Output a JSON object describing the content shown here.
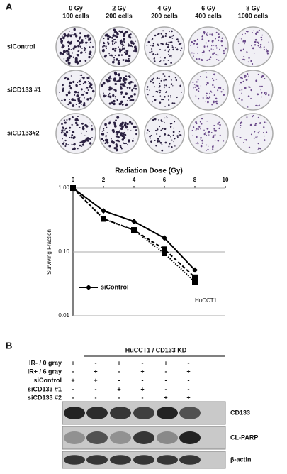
{
  "panel_a": {
    "label": "A",
    "columns": [
      [
        "0 Gy",
        "100 cells"
      ],
      [
        "2 Gy",
        "200 cells"
      ],
      [
        "4 Gy",
        "200 cells"
      ],
      [
        "6 Gy",
        "400 cells"
      ],
      [
        "8 Gy",
        "1000 cells"
      ]
    ],
    "rows": [
      "siControl",
      "siCD133 #1",
      "siCD133#2"
    ]
  },
  "chart_data": {
    "type": "line",
    "title": "Radiation Dose (Gy)",
    "y_label": "Surviving Fraction",
    "annotation": "HuCCT1",
    "x": [
      0,
      2,
      4,
      6,
      8
    ],
    "series": [
      {
        "name": "siControl",
        "color": "#000000",
        "dash": "solid",
        "marker": "diamond",
        "values": [
          1.0,
          0.44,
          0.3,
          0.165,
          0.052
        ]
      },
      {
        "color": "#000000",
        "dash": "dashed",
        "marker": "square",
        "values": [
          1.0,
          0.33,
          0.22,
          0.11,
          0.04
        ]
      },
      {
        "color": "#000000",
        "dash": "dotted",
        "marker": "square",
        "values": [
          1.0,
          0.33,
          0.22,
          0.095,
          0.034
        ]
      }
    ],
    "xlim": [
      0,
      10
    ],
    "xticks": [
      0,
      2,
      4,
      6,
      8,
      10
    ],
    "ylim": [
      0.01,
      1
    ],
    "log_y": true,
    "yticks": [
      {
        "value": 0.01,
        "label": "0.01"
      },
      {
        "value": 0.1,
        "label": "0.10"
      },
      {
        "value": 1,
        "label": "1.00"
      }
    ],
    "grid": true
  },
  "panel_b": {
    "label": "B",
    "title": "HuCCT1 / CD133 KD",
    "conditions": [
      {
        "label": "IR- / 0 gray",
        "signs": [
          "+",
          "-",
          "+",
          "-",
          "+",
          "-"
        ]
      },
      {
        "label": "IR+ / 6 gray",
        "signs": [
          "-",
          "+",
          "-",
          "+",
          "-",
          "+"
        ]
      },
      {
        "label": "siControl",
        "signs": [
          "+",
          "+",
          "-",
          "-",
          "-",
          "-"
        ]
      },
      {
        "label": "siCD133 #1",
        "signs": [
          "-",
          "-",
          "+",
          "+",
          "-",
          "-"
        ]
      },
      {
        "label": "siCD133 #2",
        "signs": [
          "-",
          "-",
          "-",
          "-",
          "+",
          "+"
        ]
      }
    ],
    "blots": [
      "CD133",
      "CL-PARP",
      "β-actin"
    ]
  }
}
